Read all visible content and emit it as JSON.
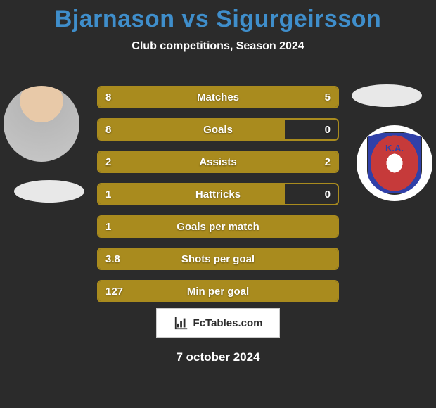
{
  "title": "Bjarnason vs Sigurgeirsson",
  "subtitle": "Club competitions, Season 2024",
  "date": "7 october 2024",
  "brand": "FcTables.com",
  "colors": {
    "bg": "#2b2b2b",
    "title": "#3f8ecb",
    "bar_fill": "#a98b1e",
    "bar_border": "#a98b1e",
    "text": "#ffffff"
  },
  "bars": [
    {
      "label": "Matches",
      "left": "8",
      "right": "5",
      "left_pct": 65,
      "right_pct": 35
    },
    {
      "label": "Goals",
      "left": "8",
      "right": "0",
      "left_pct": 78,
      "right_pct": 0
    },
    {
      "label": "Assists",
      "left": "2",
      "right": "2",
      "left_pct": 50,
      "right_pct": 50
    },
    {
      "label": "Hattricks",
      "left": "1",
      "right": "0",
      "left_pct": 78,
      "right_pct": 0
    },
    {
      "label": "Goals per match",
      "left": "1",
      "right": "",
      "left_pct": 100,
      "right_pct": 0
    },
    {
      "label": "Shots per goal",
      "left": "3.8",
      "right": "",
      "left_pct": 100,
      "right_pct": 0
    },
    {
      "label": "Min per goal",
      "left": "127",
      "right": "",
      "left_pct": 100,
      "right_pct": 0
    }
  ]
}
